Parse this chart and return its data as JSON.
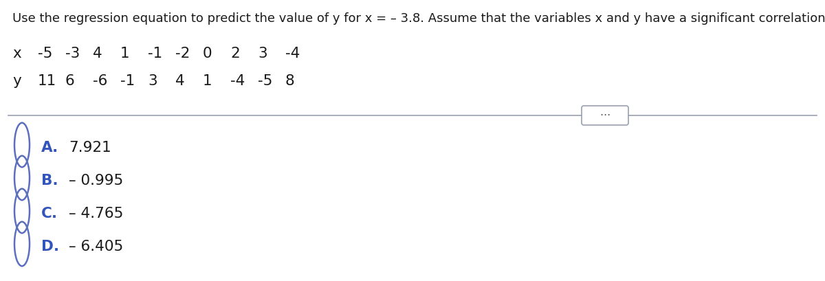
{
  "title": "Use the regression equation to predict the value of y for x = – 3.8. Assume that the variables x and y have a significant correlation.",
  "x_row_label": "x",
  "y_row_label": "y",
  "x_values": [
    "-5",
    "-3",
    "4",
    "1",
    "-1",
    "-2",
    "0",
    "2",
    "3",
    "-4"
  ],
  "y_values": [
    "11",
    "6",
    "-6",
    "-1",
    "3",
    "4",
    "1",
    "-4",
    "-5",
    "8"
  ],
  "options": [
    {
      "letter": "A.",
      "text": "7.921"
    },
    {
      "letter": "B.",
      "text": "– 0.995"
    },
    {
      "letter": "C.",
      "text": "– 4.765"
    },
    {
      "letter": "D.",
      "text": "– 6.405"
    }
  ],
  "circle_color": "#5b6fbe",
  "text_color_black": "#1a1a1a",
  "text_color_blue": "#3355bb",
  "bg_color": "#ffffff",
  "divider_color": "#9aa0b0",
  "title_fontsize": 13.0,
  "data_fontsize": 15.5,
  "option_letter_fontsize": 15.5,
  "option_text_fontsize": 15.5
}
